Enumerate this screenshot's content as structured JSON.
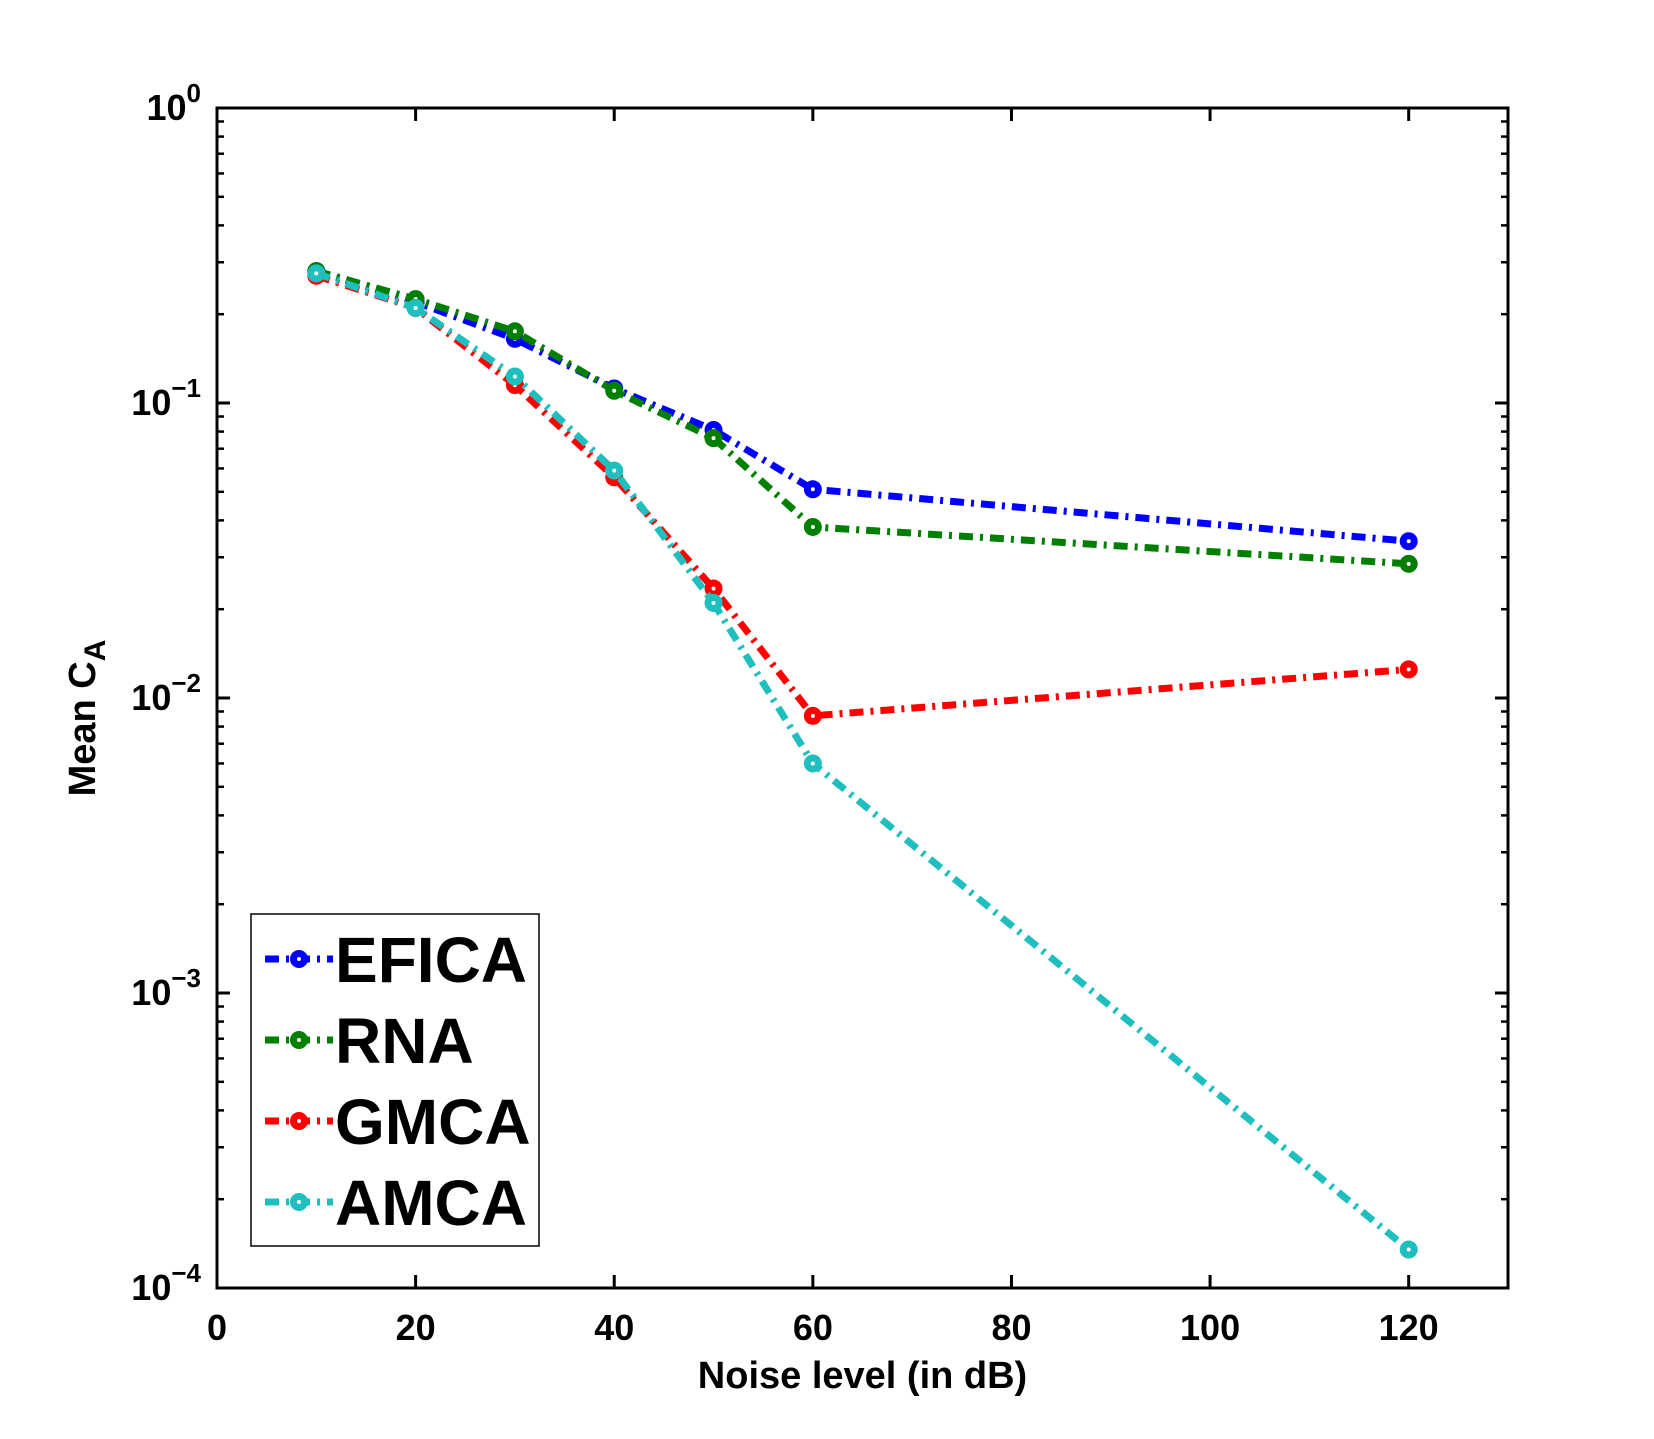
{
  "chart_data": {
    "type": "line",
    "title": "",
    "xlabel": "Noise level (in dB)",
    "ylabel_main": "Mean C",
    "ylabel_sub": "A",
    "xlim": [
      0,
      130
    ],
    "ylim": [
      0.0001,
      1
    ],
    "yscale": "log",
    "xticks": [
      0,
      20,
      40,
      60,
      80,
      100,
      120
    ],
    "xtick_labels": [
      "0",
      "20",
      "40",
      "60",
      "80",
      "100",
      "120"
    ],
    "yticks": [
      {
        "value": 1,
        "base": "10",
        "exp": "0"
      },
      {
        "value": 0.1,
        "base": "10",
        "exp": "−1"
      },
      {
        "value": 0.01,
        "base": "10",
        "exp": "−2"
      },
      {
        "value": 0.001,
        "base": "10",
        "exp": "−3"
      },
      {
        "value": 0.0001,
        "base": "10",
        "exp": "−4"
      }
    ],
    "legend_position": "bottom-left",
    "grid": false,
    "x": [
      10,
      20,
      30,
      40,
      50,
      60,
      120
    ],
    "series": [
      {
        "name": "EFICA",
        "color": "#0000ff",
        "values": [
          0.28,
          0.22,
          0.165,
          0.112,
          0.081,
          0.051,
          0.034
        ]
      },
      {
        "name": "RNA",
        "color": "#007f00",
        "values": [
          0.28,
          0.225,
          0.175,
          0.11,
          0.076,
          0.038,
          0.0285
        ]
      },
      {
        "name": "GMCA",
        "color": "#ff0000",
        "values": [
          0.27,
          0.21,
          0.115,
          0.056,
          0.0235,
          0.0087,
          0.0125
        ]
      },
      {
        "name": "AMCA",
        "color": "#1fbfbf",
        "values": [
          0.275,
          0.21,
          0.123,
          0.059,
          0.021,
          0.006,
          0.000135
        ]
      }
    ]
  }
}
